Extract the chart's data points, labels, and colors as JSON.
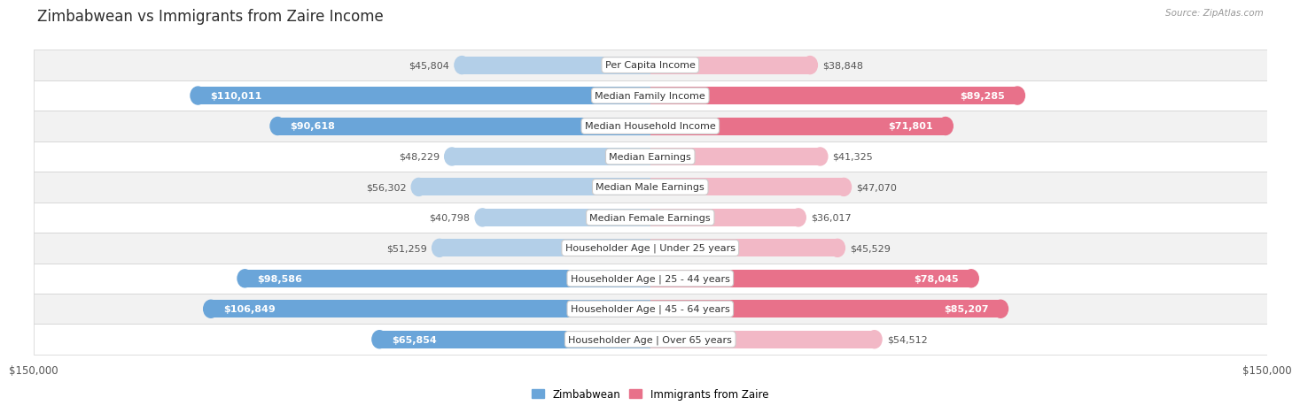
{
  "title": "Zimbabwean vs Immigrants from Zaire Income",
  "source": "Source: ZipAtlas.com",
  "categories": [
    "Per Capita Income",
    "Median Family Income",
    "Median Household Income",
    "Median Earnings",
    "Median Male Earnings",
    "Median Female Earnings",
    "Householder Age | Under 25 years",
    "Householder Age | 25 - 44 years",
    "Householder Age | 45 - 64 years",
    "Householder Age | Over 65 years"
  ],
  "zimbabwean_values": [
    45804,
    110011,
    90618,
    48229,
    56302,
    40798,
    51259,
    98586,
    106849,
    65854
  ],
  "zaire_values": [
    38848,
    89285,
    71801,
    41325,
    47070,
    36017,
    45529,
    78045,
    85207,
    54512
  ],
  "zimbabwean_labels": [
    "$45,804",
    "$110,011",
    "$90,618",
    "$48,229",
    "$56,302",
    "$40,798",
    "$51,259",
    "$98,586",
    "$106,849",
    "$65,854"
  ],
  "zaire_labels": [
    "$38,848",
    "$89,285",
    "$71,801",
    "$41,325",
    "$47,070",
    "$36,017",
    "$45,529",
    "$78,045",
    "$85,207",
    "$54,512"
  ],
  "zimbabwean_color_dark": "#6aa5d9",
  "zimbabwean_color_light": "#b3cfe8",
  "zaire_color_dark": "#e8718a",
  "zaire_color_light": "#f2b8c6",
  "max_value": 150000,
  "background_color": "#ffffff",
  "row_bg_odd": "#f2f2f2",
  "row_bg_even": "#ffffff",
  "legend_zim": "Zimbabwean",
  "legend_zaire": "Immigrants from Zaire",
  "x_tick_label": "$150,000",
  "title_fontsize": 12,
  "category_fontsize": 8,
  "value_fontsize": 8,
  "zim_inside_threshold": 65000,
  "zaire_inside_threshold": 65000
}
